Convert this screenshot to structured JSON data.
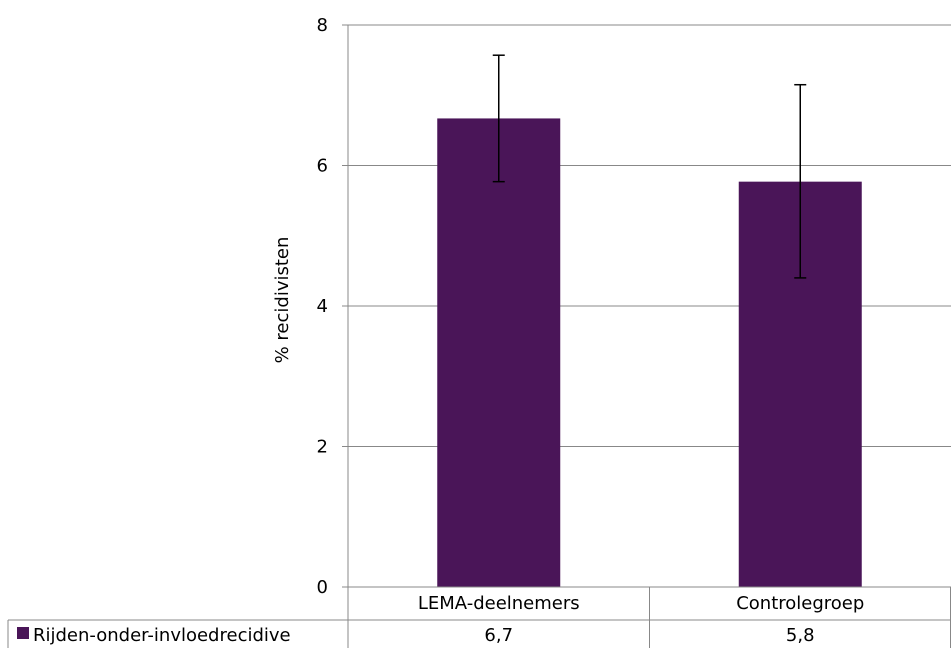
{
  "chart_data": {
    "type": "bar",
    "title": "",
    "xlabel": "",
    "ylabel": "% recidivisten",
    "ylim": [
      0,
      8
    ],
    "yticks": [
      0,
      2,
      4,
      6,
      8
    ],
    "grid": true,
    "legend": "data-table",
    "categories": [
      "LEMA-deelnemers",
      "Controlegroep"
    ],
    "series": [
      {
        "name": "Rijden-onder-invloedrecidive",
        "color": "#4a1558",
        "values": [
          6.67,
          5.77
        ],
        "error_low": [
          5.77,
          4.4
        ],
        "error_high": [
          7.57,
          7.15
        ],
        "labels": [
          "6,7",
          "5,8"
        ]
      }
    ],
    "colors": {
      "axis": "#888888",
      "grid": "#888888",
      "bar": "#4a1558",
      "error_bar": "#000000"
    }
  }
}
